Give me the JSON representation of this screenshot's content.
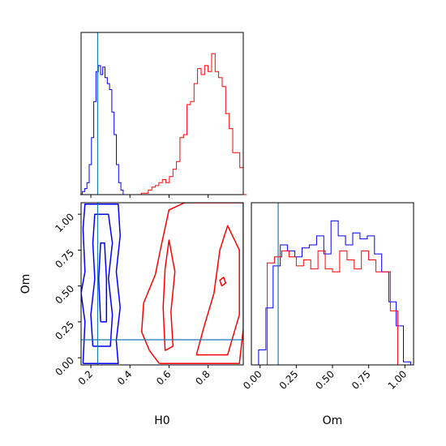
{
  "chart_data": [
    {
      "panel": "H0 marginal histogram",
      "type": "histogram",
      "xlim": [
        0.15,
        0.98
      ],
      "truth_line": 0.235,
      "series": [
        {
          "color": "#0000ff",
          "bin_edges_start": 0.145,
          "bin_width": 0.0116,
          "heights": [
            0.0,
            0.02,
            0.04,
            0.08,
            0.2,
            0.38,
            0.62,
            0.82,
            0.86,
            0.8,
            0.85,
            0.78,
            0.74,
            0.7,
            0.55,
            0.4,
            0.2,
            0.08,
            0.03,
            0.0
          ]
        },
        {
          "color": "#ff0000",
          "bin_edges_start": 0.44,
          "bin_width": 0.018,
          "heights": [
            0.0,
            0.01,
            0.01,
            0.03,
            0.05,
            0.06,
            0.08,
            0.1,
            0.08,
            0.12,
            0.17,
            0.22,
            0.38,
            0.4,
            0.6,
            0.62,
            0.74,
            0.84,
            0.8,
            0.86,
            0.82,
            0.94,
            0.82,
            0.78,
            0.72,
            0.54,
            0.44,
            0.28,
            0.28,
            0.18,
            0.0
          ]
        }
      ]
    },
    {
      "panel": "Om marginal histogram",
      "type": "histogram",
      "xlim": [
        -0.06,
        1.06
      ],
      "xlabel": "Om",
      "xticks": [
        "0.00",
        "0.25",
        "0.50",
        "0.75",
        "1.00"
      ],
      "truth_line": 0.125,
      "series": [
        {
          "color": "#0000ff",
          "bin_edges_start": -0.06,
          "bin_width": 0.05,
          "heights": [
            0.0,
            0.1,
            0.38,
            0.66,
            0.8,
            0.76,
            0.72,
            0.78,
            0.8,
            0.86,
            0.74,
            0.96,
            0.86,
            0.8,
            0.88,
            0.84,
            0.86,
            0.74,
            0.62,
            0.42,
            0.26,
            0.02
          ]
        },
        {
          "color": "#ff0000",
          "bin_edges_start": 0.0,
          "bin_width": 0.05,
          "heights": [
            0.0,
            0.68,
            0.72,
            0.76,
            0.72,
            0.66,
            0.7,
            0.64,
            0.76,
            0.64,
            0.62,
            0.76,
            0.7,
            0.64,
            0.76,
            0.7,
            0.62,
            0.62,
            0.36,
            0.0
          ]
        }
      ]
    },
    {
      "panel": "H0 vs Om 2D contours",
      "type": "contour",
      "xlabel": "H0",
      "ylabel": "Om",
      "xlim": [
        0.15,
        0.98
      ],
      "ylim": [
        -0.05,
        1.08
      ],
      "xticks": [
        "0.2",
        "0.4",
        "0.6",
        "0.8"
      ],
      "yticks": [
        "0.00",
        "0.25",
        "0.50",
        "0.75",
        "1.00"
      ],
      "truth": {
        "x": 0.235,
        "y": 0.125
      },
      "series": [
        {
          "color": "#0000ff",
          "contours": [
            [
              [
                0.16,
                -0.04
              ],
              [
                0.34,
                -0.04
              ],
              [
                0.33,
                0.12
              ],
              [
                0.35,
                0.35
              ],
              [
                0.33,
                0.6
              ],
              [
                0.35,
                0.85
              ],
              [
                0.34,
                1.07
              ],
              [
                0.17,
                1.07
              ],
              [
                0.16,
                0.9
              ],
              [
                0.17,
                0.6
              ],
              [
                0.15,
                0.45
              ],
              [
                0.17,
                0.25
              ],
              [
                0.16,
                -0.04
              ]
            ],
            [
              [
                0.21,
                0.08
              ],
              [
                0.3,
                0.08
              ],
              [
                0.31,
                0.3
              ],
              [
                0.29,
                0.55
              ],
              [
                0.31,
                0.8
              ],
              [
                0.29,
                1.0
              ],
              [
                0.22,
                1.0
              ],
              [
                0.21,
                0.8
              ],
              [
                0.22,
                0.55
              ],
              [
                0.2,
                0.3
              ],
              [
                0.21,
                0.08
              ]
            ],
            [
              [
                0.25,
                0.25
              ],
              [
                0.28,
                0.25
              ],
              [
                0.28,
                0.55
              ],
              [
                0.27,
                0.8
              ],
              [
                0.25,
                0.8
              ],
              [
                0.24,
                0.55
              ],
              [
                0.25,
                0.25
              ]
            ]
          ]
        },
        {
          "color": "#ff0000",
          "contours": [
            [
              [
                0.55,
                -0.04
              ],
              [
                0.96,
                -0.04
              ],
              [
                0.98,
                0.2
              ],
              [
                0.98,
                1.08
              ],
              [
                0.68,
                1.08
              ],
              [
                0.6,
                1.03
              ],
              [
                0.56,
                0.78
              ],
              [
                0.53,
                0.58
              ],
              [
                0.47,
                0.38
              ],
              [
                0.46,
                0.18
              ],
              [
                0.5,
                0.05
              ],
              [
                0.55,
                -0.04
              ]
            ],
            [
              [
                0.74,
                0.02
              ],
              [
                0.9,
                0.02
              ],
              [
                0.96,
                0.3
              ],
              [
                0.96,
                0.75
              ],
              [
                0.9,
                0.92
              ],
              [
                0.86,
                0.75
              ],
              [
                0.83,
                0.45
              ],
              [
                0.78,
                0.22
              ],
              [
                0.74,
                0.02
              ]
            ],
            [
              [
                0.58,
                0.05
              ],
              [
                0.62,
                0.08
              ],
              [
                0.61,
                0.32
              ],
              [
                0.63,
                0.6
              ],
              [
                0.6,
                0.82
              ],
              [
                0.58,
                0.62
              ],
              [
                0.57,
                0.35
              ],
              [
                0.58,
                0.05
              ]
            ],
            [
              [
                0.87,
                0.5
              ],
              [
                0.89,
                0.52
              ],
              [
                0.88,
                0.56
              ],
              [
                0.86,
                0.54
              ],
              [
                0.87,
                0.5
              ]
            ]
          ]
        }
      ]
    }
  ]
}
